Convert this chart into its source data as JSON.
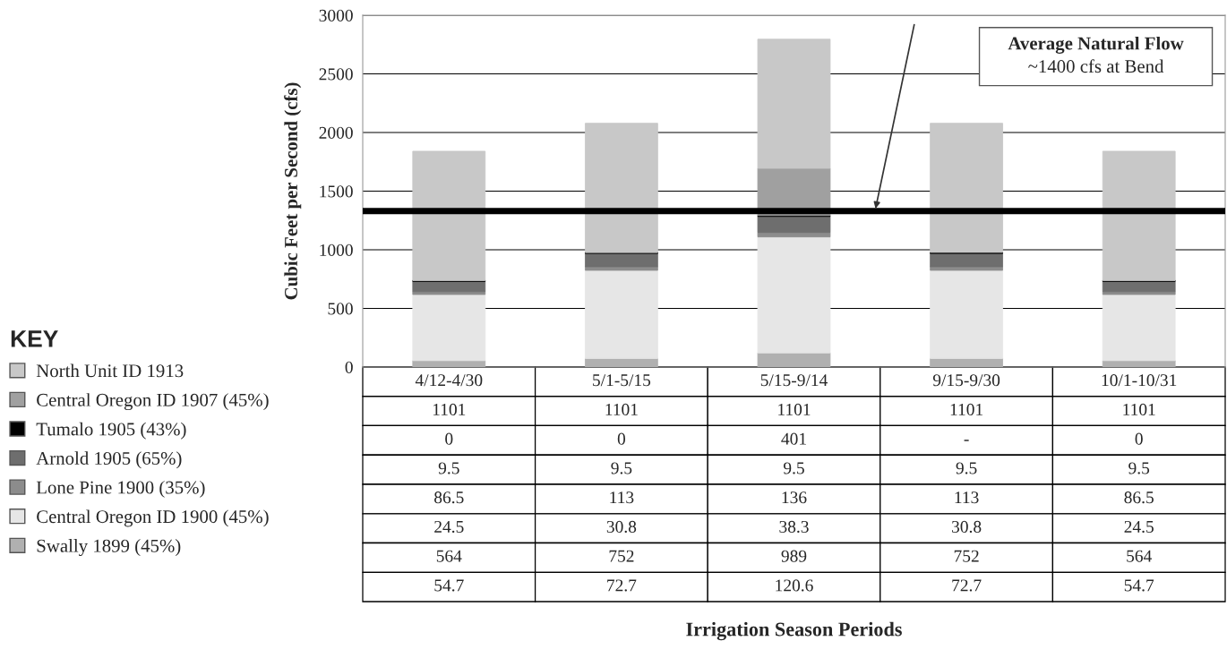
{
  "chart_data": {
    "type": "bar",
    "stacked": true,
    "categories": [
      "4/12-4/30",
      "5/1-5/15",
      "5/15-9/14",
      "9/15-9/30",
      "10/1-10/31"
    ],
    "series": [
      {
        "name": "Swally 1899 (45%)",
        "color": "#b0b0b0",
        "values": [
          54.7,
          72.7,
          120.6,
          72.7,
          54.7
        ],
        "value_labels": [
          "54.7",
          "72.7",
          "120.6",
          "72.7",
          "54.7"
        ]
      },
      {
        "name": "Central Oregon ID 1900 (45%)",
        "color": "#e6e6e6",
        "values": [
          564,
          752,
          989,
          752,
          564
        ],
        "value_labels": [
          "564",
          "752",
          "989",
          "752",
          "564"
        ]
      },
      {
        "name": "Lone Pine 1900 (35%)",
        "color": "#8c8c8c",
        "values": [
          24.5,
          30.8,
          38.3,
          30.8,
          24.5
        ],
        "value_labels": [
          "24.5",
          "30.8",
          "38.3",
          "30.8",
          "24.5"
        ]
      },
      {
        "name": "Arnold 1905 (65%)",
        "color": "#6e6e6e",
        "values": [
          86.5,
          113,
          136,
          113,
          86.5
        ],
        "value_labels": [
          "86.5",
          "113",
          "136",
          "113",
          "86.5"
        ]
      },
      {
        "name": "Tumalo 1905 (43%)",
        "color": "#000000",
        "values": [
          9.5,
          9.5,
          9.5,
          9.5,
          9.5
        ],
        "value_labels": [
          "9.5",
          "9.5",
          "9.5",
          "9.5",
          "9.5"
        ]
      },
      {
        "name": "Central Oregon ID 1907 (45%)",
        "color": "#a0a0a0",
        "values": [
          0,
          0,
          401,
          null,
          0
        ],
        "value_labels": [
          "0",
          "0",
          "401",
          "-",
          "0"
        ]
      },
      {
        "name": "North Unit ID 1913",
        "color": "#c8c8c8",
        "values": [
          1101,
          1101,
          1101,
          1101,
          1101
        ],
        "value_labels": [
          "1101",
          "1101",
          "1101",
          "1101",
          "1101"
        ]
      }
    ],
    "ylabel": "Cubic Feet per Second (cfs)",
    "ylim": [
      0,
      3000
    ],
    "yticks": [
      0,
      500,
      1000,
      1500,
      2000,
      2500,
      3000
    ],
    "grid": "y",
    "legend": "left",
    "legend_title": "KEY",
    "ref_lines": [
      {
        "axis": "y",
        "value": 1330,
        "color": "#000000"
      }
    ],
    "annotations": [
      "Average Natural Flow",
      "~1400 cfs at Bend",
      "Irrigation Season Periods"
    ]
  }
}
